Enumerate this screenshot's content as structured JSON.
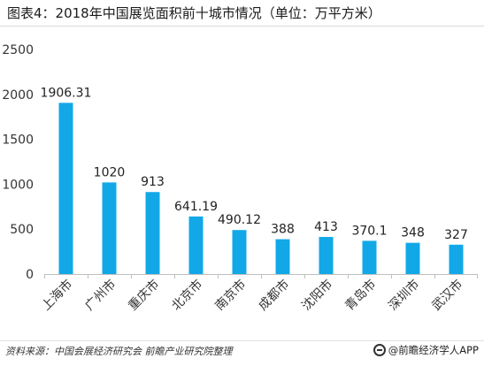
{
  "title": "图表4：2018年中国展览面积前十城市情况（单位：万平方米）",
  "source": "资料来源：中国会展经济研究会 前瞻产业研究院整理",
  "brand": "@前瞻经济学人APP",
  "colors": {
    "bar": "#12A8E8",
    "axis": "#bfbfbf",
    "text": "#333333"
  },
  "chart_data": {
    "type": "bar",
    "categories": [
      "上海市",
      "广州市",
      "重庆市",
      "北京市",
      "南京市",
      "成都市",
      "沈阳市",
      "青岛市",
      "深圳市",
      "武汉市"
    ],
    "values": [
      1906.31,
      1020,
      913,
      641.19,
      490.12,
      388,
      413,
      370.1,
      348,
      327
    ],
    "value_labels": [
      "1906.31",
      "1020",
      "913",
      "641.19",
      "490.12",
      "388",
      "413",
      "370.1",
      "348",
      "327"
    ],
    "yticks": [
      "0",
      "500",
      "1000",
      "1500",
      "2000",
      "2500"
    ],
    "ylim": [
      0,
      2500
    ],
    "grid": false,
    "legend": "none"
  }
}
